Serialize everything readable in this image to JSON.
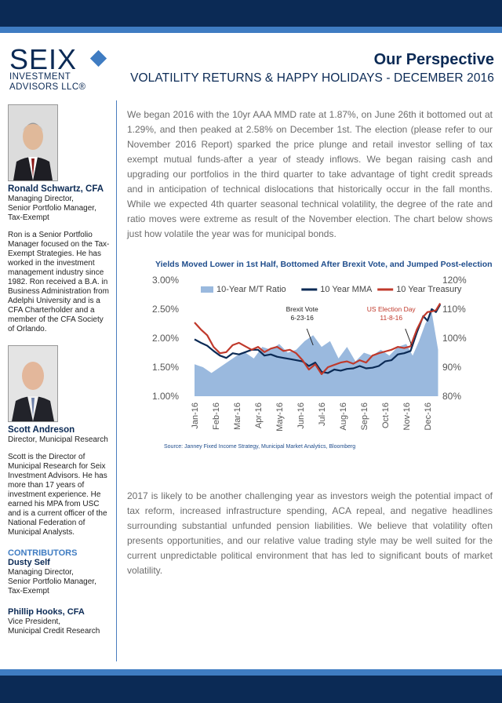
{
  "logo": {
    "main": "SEIX",
    "line1": "INVESTMENT",
    "line2": "ADVISORS LLC®"
  },
  "header": {
    "title": "Our Perspective",
    "subtitle": "VOLATILITY RETURNS & HAPPY HOLIDAYS - DECEMBER 2016"
  },
  "sidebar": {
    "person1": {
      "name": "Ronald Schwartz, CFA",
      "role": [
        "Managing Director,",
        "Senior Portfolio Manager,",
        "Tax-Exempt"
      ],
      "bio": "Ron is a Senior Portfolio Manager focused on the Tax-Exempt Strategies. He has worked in the investment management industry since 1982. Ron received a B.A. in Business Administration from Adelphi University and is a CFA Charterholder and a member of the CFA Society of Orlando."
    },
    "person2": {
      "name": "Scott Andreson",
      "role": [
        "Director, Municipal Research"
      ],
      "bio": "Scott is the Director of Municipal Research for Seix Investment Advisors. He has more than 17 years of investment experience. He earned his MPA from USC and is a current officer of the National Federation of Municipal Analysts."
    },
    "contributors_heading": "CONTRIBUTORS",
    "contributor1": {
      "name": "Dusty Self",
      "role": [
        "Managing Director,",
        "Senior Portfolio Manager,",
        "Tax-Exempt"
      ]
    },
    "contributor2": {
      "name": "Phillip Hooks, CFA",
      "role": [
        "Vice President,",
        "Municipal Credit Research"
      ]
    }
  },
  "body": {
    "para1": "We began 2016 with the 10yr AAA MMD rate at 1.87%, on June 26th it bottomed out at 1.29%, and then peaked at 2.58% on December 1st. The election (please refer to our November 2016 Report) sparked the price plunge and retail investor selling of tax exempt mutual funds-after a year of steady inflows. We began raising cash and upgrading our portfolios in the third quarter to take advantage of tight credit spreads and in anticipation of technical dislocations that historically occur in the fall months. While we expected 4th quarter seasonal technical volatility, the degree of the rate and ratio moves were extreme as result of the November election. The chart below shows just how volatile the year was for municipal bonds.",
    "para2": "2017 is likely to be another challenging year as investors weigh the potential impact of tax reform, increased infrastructure spending, ACA repeal, and negative headlines surrounding substantial unfunded pension liabilities. We believe that volatility often presents opportunities, and our relative value trading style may be well suited for the current unpredictable political environment that has led to significant bouts of market volatility."
  },
  "chart_data": {
    "type": "line",
    "title": "Yields Moved Lower in 1st Half, Bottomed After Brexit Vote, and Jumped Post-election",
    "source": "Source: Janney Fixed Income Strategy, Municipal Market Analytics, Bloomberg",
    "categories": [
      "Jan-16",
      "Feb-16",
      "Mar-16",
      "Apr-16",
      "May-16",
      "Jun-16",
      "Jul-16",
      "Aug-16",
      "Sep-16",
      "Oct-16",
      "Nov-16",
      "Dec-16"
    ],
    "y_left": {
      "ticks": [
        "3.00%",
        "2.50%",
        "2.00%",
        "1.50%",
        "1.00%"
      ],
      "lim": [
        1.0,
        3.0
      ]
    },
    "y_right": {
      "ticks": [
        "120%",
        "110%",
        "100%",
        "90%",
        "80%"
      ],
      "lim": [
        80,
        120
      ]
    },
    "legend_position": "top",
    "annotations": [
      {
        "text": [
          "Brexit Vote",
          "6-23-16"
        ],
        "x": 5.6,
        "color": "#222222"
      },
      {
        "text": [
          "US Election Day",
          "11-8-16"
        ],
        "x": 10.25,
        "color": "#c0392b"
      }
    ],
    "series": [
      {
        "name": "10-Year M/T Ratio",
        "kind": "area",
        "axis": "right",
        "color": "#9ab9de",
        "x": [
          0,
          0.4,
          0.8,
          1.2,
          1.6,
          2.0,
          2.4,
          2.8,
          3.2,
          3.6,
          4.0,
          4.4,
          4.8,
          5.2,
          5.6,
          6.0,
          6.4,
          6.8,
          7.2,
          7.6,
          8.0,
          8.4,
          8.8,
          9.2,
          9.6,
          10.0,
          10.3,
          10.6,
          10.9,
          11.2,
          11.5
        ],
        "values": [
          91,
          90,
          88,
          90,
          92,
          94,
          95,
          93,
          97,
          96,
          98,
          95,
          96,
          99,
          101,
          97,
          99,
          93,
          97,
          92,
          95,
          94,
          96,
          94,
          97,
          98,
          94,
          99,
          105,
          109,
          96
        ]
      },
      {
        "name": "10 Year MMA",
        "kind": "line",
        "axis": "left",
        "color": "#0b2a55",
        "x": [
          0,
          0.3,
          0.6,
          0.9,
          1.2,
          1.5,
          1.8,
          2.1,
          2.4,
          2.7,
          3.0,
          3.3,
          3.6,
          3.9,
          4.2,
          4.5,
          4.8,
          5.1,
          5.4,
          5.7,
          6.0,
          6.3,
          6.6,
          6.9,
          7.2,
          7.5,
          7.8,
          8.1,
          8.4,
          8.7,
          9.0,
          9.3,
          9.6,
          9.9,
          10.2,
          10.5,
          10.8,
          11.0,
          11.2,
          11.4,
          11.6
        ],
        "values": [
          1.98,
          1.92,
          1.87,
          1.78,
          1.7,
          1.66,
          1.74,
          1.72,
          1.76,
          1.8,
          1.8,
          1.7,
          1.72,
          1.68,
          1.66,
          1.64,
          1.62,
          1.6,
          1.52,
          1.58,
          1.42,
          1.4,
          1.46,
          1.44,
          1.47,
          1.48,
          1.52,
          1.48,
          1.49,
          1.52,
          1.6,
          1.62,
          1.72,
          1.74,
          1.78,
          2.1,
          2.38,
          2.3,
          2.5,
          2.45,
          2.58
        ]
      },
      {
        "name": "10 Year Treasury",
        "kind": "line",
        "axis": "left",
        "color": "#c0392b",
        "x": [
          0,
          0.3,
          0.6,
          0.9,
          1.2,
          1.5,
          1.8,
          2.1,
          2.4,
          2.7,
          3.0,
          3.3,
          3.6,
          3.9,
          4.2,
          4.5,
          4.8,
          5.1,
          5.4,
          5.7,
          6.0,
          6.3,
          6.6,
          6.9,
          7.2,
          7.5,
          7.8,
          8.1,
          8.4,
          8.7,
          9.0,
          9.3,
          9.6,
          9.9,
          10.2,
          10.5,
          10.8,
          11.0,
          11.2,
          11.4,
          11.6
        ],
        "values": [
          2.27,
          2.15,
          2.05,
          1.85,
          1.74,
          1.76,
          1.88,
          1.92,
          1.86,
          1.8,
          1.85,
          1.76,
          1.82,
          1.85,
          1.78,
          1.8,
          1.74,
          1.62,
          1.46,
          1.55,
          1.38,
          1.5,
          1.54,
          1.58,
          1.6,
          1.56,
          1.62,
          1.58,
          1.7,
          1.74,
          1.77,
          1.8,
          1.85,
          1.83,
          1.86,
          2.15,
          2.37,
          2.45,
          2.46,
          2.48,
          2.6
        ]
      }
    ]
  }
}
